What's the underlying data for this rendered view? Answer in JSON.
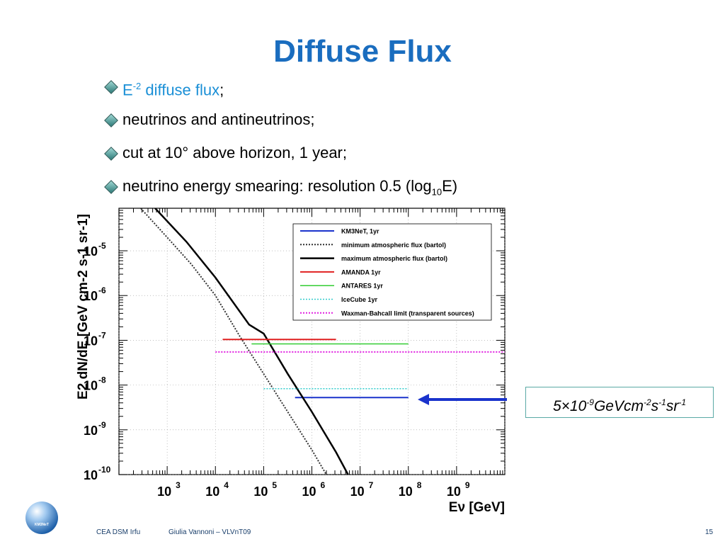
{
  "slide": {
    "title": "Diffuse Flux",
    "bullets": [
      {
        "pre": "E",
        "sup": "-2",
        "blue_rest": " diffuse flux",
        "tail": ";"
      },
      {
        "text": "neutrinos and antineutrinos;"
      },
      {
        "text": "cut at 10° above horizon, 1 year;"
      },
      {
        "pre": "neutrino energy smearing: resolution 0.5 (log",
        "sub": "10",
        "tail": "E)"
      }
    ],
    "callout": {
      "a": "5×10",
      "a_sup": "-9",
      "b": "GeVcm",
      "b_sup": "-2",
      "c": "s",
      "c_sup": "-1",
      "d": "sr",
      "d_sup": "-1"
    },
    "footer": {
      "org": "CEA DSM Irfu",
      "author": "Giulia Vannoni – VLVnT09",
      "page": "15"
    },
    "logo_text": "KM3NeT"
  },
  "chart_data": {
    "type": "line",
    "xscale": "log",
    "yscale": "log",
    "xlim_exp": [
      2.0,
      10.0
    ],
    "ylim_exp": [
      -10,
      -4.05
    ],
    "xlabel": "Eν [GeV]",
    "ylabel": "E2 dN/dE [GeV cm-2 s-1 sr-1]",
    "x_ticks_exp": [
      3,
      4,
      5,
      6,
      7,
      8,
      9
    ],
    "y_ticks_exp": [
      -10,
      -9,
      -8,
      -7,
      -6,
      -5
    ],
    "legend_position": "top-right",
    "series": [
      {
        "name": "KM3NeT, 1yr",
        "color": "#1a33cc",
        "style": "solid",
        "width": 2,
        "x_exp": [
          5.65,
          8.0
        ],
        "y_exp": [
          -8.28,
          -8.28
        ]
      },
      {
        "name": "minimum atmospheric flux (bartol)",
        "color": "#333333",
        "style": "dotted",
        "width": 2,
        "x_exp": [
          2.45,
          3.0,
          3.5,
          4.0,
          4.5,
          5.0,
          5.5,
          6.0,
          6.3
        ],
        "y_exp": [
          -4.05,
          -4.7,
          -5.3,
          -6.0,
          -6.9,
          -7.75,
          -8.6,
          -9.45,
          -10.0
        ]
      },
      {
        "name": "maximum atmospheric flux (bartol)",
        "color": "#000000",
        "style": "solid",
        "width": 2.5,
        "x_exp": [
          2.75,
          3.4,
          4.0,
          4.7,
          5.0,
          5.5,
          6.0,
          6.5,
          6.75
        ],
        "y_exp": [
          -4.05,
          -4.8,
          -5.6,
          -6.65,
          -6.85,
          -7.75,
          -8.6,
          -9.5,
          -10.0
        ]
      },
      {
        "name": "AMANDA 1yr",
        "color": "#e02020",
        "style": "solid",
        "width": 2,
        "x_exp": [
          4.15,
          6.5
        ],
        "y_exp": [
          -6.98,
          -6.98
        ]
      },
      {
        "name": "ANTARES 1yr",
        "color": "#33cc33",
        "style": "solid",
        "width": 1.5,
        "x_exp": [
          4.75,
          8.0
        ],
        "y_exp": [
          -7.08,
          -7.08
        ]
      },
      {
        "name": "IceCube 1yr",
        "color": "#33cccc",
        "style": "dotted",
        "width": 1.5,
        "x_exp": [
          5.0,
          8.0
        ],
        "y_exp": [
          -8.08,
          -8.08
        ]
      },
      {
        "name": "Waxman-Bahcall limit (transparent sources)",
        "color": "#e020e0",
        "style": "dotted",
        "width": 2,
        "x_exp": [
          4.0,
          10.0
        ],
        "y_exp": [
          -7.26,
          -7.26
        ]
      }
    ]
  }
}
